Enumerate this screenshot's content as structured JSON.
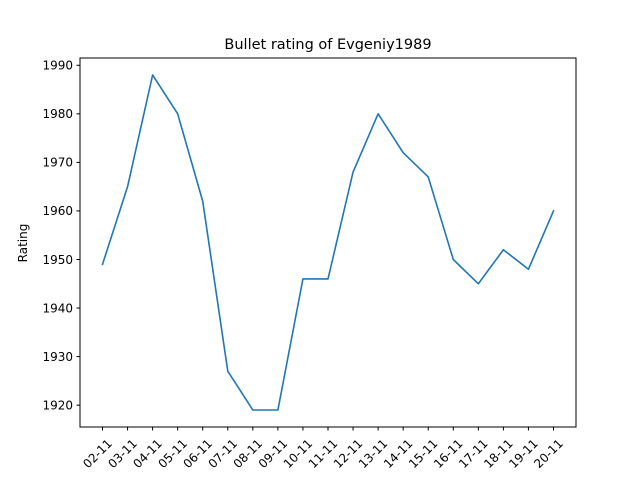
{
  "chart_data": {
    "type": "line",
    "title": "Bullet rating of Evgeniy1989",
    "xlabel": "",
    "ylabel": "Rating",
    "categories": [
      "02-11",
      "03-11",
      "04-11",
      "05-11",
      "06-11",
      "07-11",
      "08-11",
      "09-11",
      "10-11",
      "11-11",
      "12-11",
      "13-11",
      "14-11",
      "15-11",
      "16-11",
      "17-11",
      "18-11",
      "19-11",
      "20-11"
    ],
    "series": [
      {
        "values": [
          1949,
          1965,
          1988,
          1980,
          1962,
          1927,
          1919,
          1919,
          1946,
          1946,
          1968,
          1980,
          1972,
          1967,
          1950,
          1945,
          1952,
          1948,
          1960
        ]
      }
    ],
    "ylim": [
      1915.5,
      1991.5
    ],
    "yticks": [
      1920,
      1930,
      1940,
      1950,
      1960,
      1970,
      1980,
      1990
    ],
    "grid": false,
    "legend": "none",
    "line_color": "#1f77b4"
  }
}
